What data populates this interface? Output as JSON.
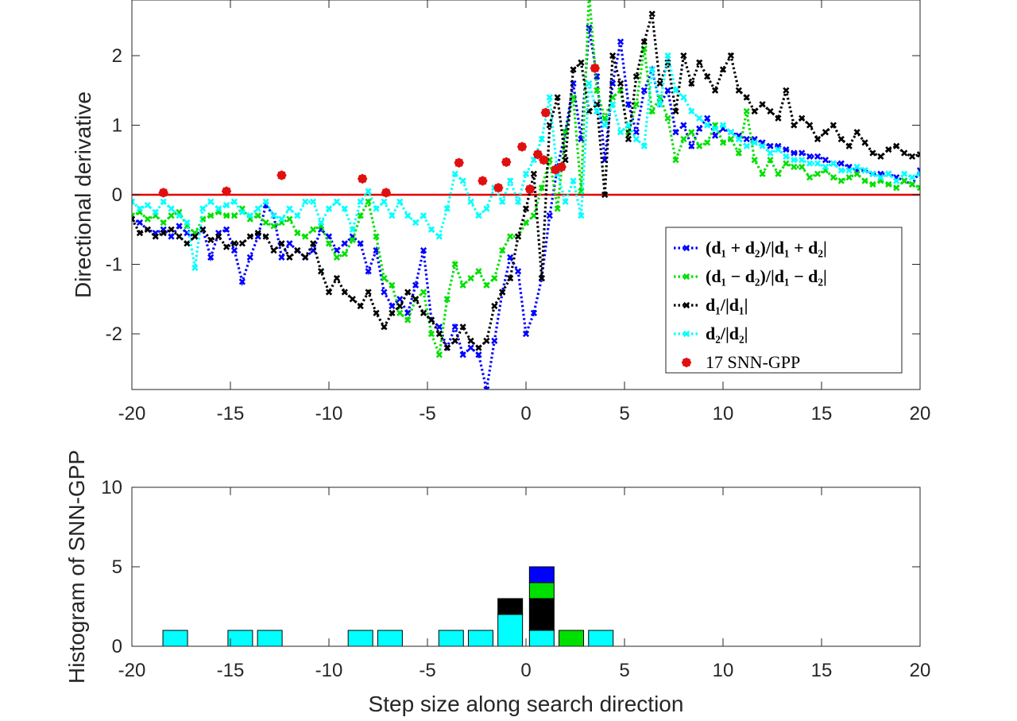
{
  "chart_data": [
    {
      "type": "line",
      "title": "",
      "xlabel": "",
      "ylabel": "Directional derivative",
      "xlim": [
        -20,
        20
      ],
      "ylim": [
        -2.8,
        2.8
      ],
      "xticks": [
        -20,
        -15,
        -10,
        -5,
        0,
        5,
        10,
        15,
        20
      ],
      "yticks": [
        -2,
        -1,
        0,
        1,
        2
      ],
      "xtick_labels": [
        "-20",
        "-15",
        "-10",
        "-5",
        "0",
        "5",
        "10",
        "15",
        "20"
      ],
      "ytick_labels": [
        "-2",
        "-1",
        "0",
        "1",
        "2"
      ],
      "legend_position": "bottom-right",
      "series": [
        {
          "name": "(d1 + d2)/|d1 + d2|",
          "label": "(d₁ + d₂)/|d₁ + d₂|",
          "color": "#0000FF",
          "style": "dotted-x",
          "x": [
            -20,
            -19.6,
            -19.2,
            -18.8,
            -18.4,
            -18,
            -17.6,
            -17.2,
            -16.8,
            -16.4,
            -16,
            -15.6,
            -15.2,
            -14.8,
            -14.4,
            -14,
            -13.6,
            -13.2,
            -12.8,
            -12.4,
            -12,
            -11.6,
            -11.2,
            -10.8,
            -10.4,
            -10,
            -9.6,
            -9.2,
            -8.8,
            -8.4,
            -8,
            -7.6,
            -7.2,
            -6.8,
            -6.4,
            -6,
            -5.6,
            -5.2,
            -4.8,
            -4.4,
            -4,
            -3.6,
            -3.2,
            -2.8,
            -2.4,
            -2,
            -1.6,
            -1.2,
            -0.8,
            -0.4,
            0,
            0.4,
            0.8,
            1.2,
            1.6,
            2,
            2.4,
            2.8,
            3.2,
            3.6,
            4,
            4.4,
            4.8,
            5.2,
            5.6,
            6,
            6.4,
            6.8,
            7.2,
            7.6,
            8,
            8.4,
            8.8,
            9.2,
            9.6,
            10,
            10.4,
            10.8,
            11.2,
            11.6,
            12,
            12.4,
            12.8,
            13.2,
            13.6,
            14,
            14.4,
            14.8,
            15.2,
            15.6,
            16,
            16.4,
            16.8,
            17.2,
            17.6,
            18,
            18.4,
            18.8,
            19.2,
            19.6,
            20
          ],
          "values": [
            -0.35,
            -0.4,
            -0.5,
            -0.55,
            -0.5,
            -0.6,
            -0.45,
            -0.55,
            -0.6,
            -0.5,
            -0.9,
            -0.55,
            -0.5,
            -0.8,
            -1.25,
            -0.9,
            -0.6,
            -0.15,
            -0.3,
            -0.9,
            -0.7,
            -0.8,
            -0.9,
            -0.8,
            -0.5,
            -0.6,
            -0.8,
            -0.7,
            -0.6,
            -0.7,
            -1.1,
            -0.8,
            -1.4,
            -1.6,
            -1.5,
            -1.7,
            -1.3,
            -0.8,
            -1.8,
            -1.9,
            -2.2,
            -1.9,
            -2.3,
            -2.2,
            -2.3,
            -2.8,
            -2.1,
            -1.4,
            -0.9,
            -1.1,
            -2.0,
            -1.7,
            -1.2,
            -0.3,
            0.4,
            0.9,
            1.6,
            0.8,
            2.4,
            1.7,
            0.5,
            1.6,
            2.2,
            1.3,
            0.9,
            1.5,
            1.8,
            1.3,
            1.5,
            0.9,
            1.0,
            0.7,
            0.95,
            1.1,
            0.85,
            0.95,
            0.9,
            0.85,
            0.8,
            0.8,
            0.75,
            0.7,
            0.7,
            0.65,
            0.6,
            0.6,
            0.55,
            0.55,
            0.5,
            0.45,
            0.45,
            0.4,
            0.35,
            0.35,
            0.3,
            0.3,
            0.3,
            0.25,
            0.2,
            0.15,
            0.35
          ]
        },
        {
          "name": "(d1 - d2)/|d1 - d2|",
          "label": "(d₁ − d₂)/|d₁ − d₂|",
          "color": "#00E000",
          "style": "dotted-x",
          "x": [
            -20,
            -19.6,
            -19.2,
            -18.8,
            -18.4,
            -18,
            -17.6,
            -17.2,
            -16.8,
            -16.4,
            -16,
            -15.6,
            -15.2,
            -14.8,
            -14.4,
            -14,
            -13.6,
            -13.2,
            -12.8,
            -12.4,
            -12,
            -11.6,
            -11.2,
            -10.8,
            -10.4,
            -10,
            -9.6,
            -9.2,
            -8.8,
            -8.4,
            -8,
            -7.6,
            -7.2,
            -6.8,
            -6.4,
            -6,
            -5.6,
            -5.2,
            -4.8,
            -4.4,
            -4,
            -3.6,
            -3.2,
            -2.8,
            -2.4,
            -2,
            -1.6,
            -1.2,
            -0.8,
            -0.4,
            0,
            0.4,
            0.8,
            1.2,
            1.6,
            2,
            2.4,
            2.8,
            3.2,
            3.6,
            4,
            4.4,
            4.8,
            5.2,
            5.6,
            6,
            6.4,
            6.8,
            7.2,
            7.6,
            8,
            8.4,
            8.8,
            9.2,
            9.6,
            10,
            10.4,
            10.8,
            11.2,
            11.6,
            12,
            12.4,
            12.8,
            13.2,
            13.6,
            14,
            14.4,
            14.8,
            15.2,
            15.6,
            16,
            16.4,
            16.8,
            17.2,
            17.6,
            18,
            18.4,
            18.8,
            19.2,
            19.6,
            20
          ],
          "values": [
            -0.3,
            -0.25,
            -0.35,
            -0.3,
            -0.4,
            -0.3,
            -0.25,
            -0.45,
            -0.55,
            -0.35,
            -0.3,
            -0.25,
            -0.3,
            -0.3,
            -0.2,
            -0.35,
            -0.3,
            -0.4,
            -0.45,
            -0.4,
            -0.35,
            -0.55,
            -0.6,
            -0.5,
            -0.45,
            -0.7,
            -0.9,
            -0.85,
            -0.65,
            -0.3,
            -0.1,
            -0.6,
            -1.2,
            -1.3,
            -1.7,
            -1.8,
            -1.5,
            -1.4,
            -2.0,
            -2.3,
            -1.5,
            -1.0,
            -1.3,
            -1.2,
            -1.1,
            -1.3,
            -1.2,
            -0.8,
            -0.6,
            -0.6,
            -0.4,
            -0.3,
            0.1,
            0.5,
            -0.2,
            0.9,
            1.4,
            0.05,
            2.9,
            1.5,
            1.1,
            1.4,
            1.5,
            0.9,
            1.3,
            2.1,
            1.2,
            1.4,
            1.1,
            0.5,
            0.8,
            0.9,
            0.7,
            0.75,
            1.0,
            0.75,
            0.8,
            0.6,
            1.2,
            0.5,
            0.3,
            0.5,
            0.3,
            0.45,
            0.4,
            0.4,
            0.25,
            0.3,
            0.35,
            0.25,
            0.2,
            0.25,
            0.3,
            0.2,
            0.15,
            0.2,
            0.15,
            0.1,
            0.2,
            0.15,
            0.1
          ]
        },
        {
          "name": "d1/|d1|",
          "label": "d₁/|d₁|",
          "color": "#000000",
          "style": "dotted-x",
          "x": [
            -20,
            -19.6,
            -19.2,
            -18.8,
            -18.4,
            -18,
            -17.6,
            -17.2,
            -16.8,
            -16.4,
            -16,
            -15.6,
            -15.2,
            -14.8,
            -14.4,
            -14,
            -13.6,
            -13.2,
            -12.8,
            -12.4,
            -12,
            -11.6,
            -11.2,
            -10.8,
            -10.4,
            -10,
            -9.6,
            -9.2,
            -8.8,
            -8.4,
            -8,
            -7.6,
            -7.2,
            -6.8,
            -6.4,
            -6,
            -5.6,
            -5.2,
            -4.8,
            -4.4,
            -4,
            -3.6,
            -3.2,
            -2.8,
            -2.4,
            -2,
            -1.6,
            -1.2,
            -0.8,
            -0.4,
            0,
            0.4,
            0.8,
            1.2,
            1.6,
            2,
            2.4,
            2.8,
            3.2,
            3.6,
            4,
            4.4,
            4.8,
            5.2,
            5.6,
            6,
            6.4,
            6.8,
            7.2,
            7.6,
            8,
            8.4,
            8.8,
            9.2,
            9.6,
            10,
            10.4,
            10.8,
            11.2,
            11.6,
            12,
            12.4,
            12.8,
            13.2,
            13.6,
            14,
            14.4,
            14.8,
            15.2,
            15.6,
            16,
            16.4,
            16.8,
            17.2,
            17.6,
            18,
            18.4,
            18.8,
            19.2,
            19.6,
            20
          ],
          "values": [
            -0.35,
            -0.55,
            -0.5,
            -0.6,
            -0.55,
            -0.5,
            -0.6,
            -0.7,
            -0.6,
            -0.5,
            -0.65,
            -0.6,
            -0.75,
            -0.7,
            -0.7,
            -0.6,
            -0.55,
            -0.6,
            -0.8,
            -0.7,
            -0.9,
            -0.8,
            -0.9,
            -0.7,
            -1.1,
            -1.4,
            -1.2,
            -1.4,
            -1.5,
            -1.6,
            -1.4,
            -1.7,
            -1.9,
            -1.7,
            -1.6,
            -1.4,
            -1.5,
            -1.7,
            -1.8,
            -2.0,
            -2.2,
            -2.1,
            -1.9,
            -2.1,
            -2.2,
            -2.1,
            -1.6,
            -1.4,
            -1.2,
            -0.6,
            -0.2,
            0.3,
            -1.2,
            1.0,
            1.4,
            0.5,
            1.8,
            1.9,
            1.2,
            1.3,
            0.0,
            2.0,
            1.6,
            0.8,
            1.7,
            2.2,
            2.6,
            1.6,
            1.9,
            1.2,
            2.0,
            1.6,
            1.9,
            1.7,
            1.5,
            1.8,
            2.0,
            1.5,
            1.4,
            1.2,
            1.3,
            1.2,
            1.1,
            1.5,
            1.0,
            1.1,
            1.0,
            0.8,
            0.9,
            1.0,
            0.8,
            0.7,
            0.9,
            0.75,
            0.6,
            0.55,
            0.65,
            0.7,
            0.6,
            0.55,
            0.58
          ]
        },
        {
          "name": "d2/|d2|",
          "label": "d₂/|d₂|",
          "color": "#00FFFF",
          "style": "dotted-x",
          "x": [
            -20,
            -19.6,
            -19.2,
            -18.8,
            -18.4,
            -18,
            -17.6,
            -17.2,
            -16.8,
            -16.4,
            -16,
            -15.6,
            -15.2,
            -14.8,
            -14.4,
            -14,
            -13.6,
            -13.2,
            -12.8,
            -12.4,
            -12,
            -11.6,
            -11.2,
            -10.8,
            -10.4,
            -10,
            -9.6,
            -9.2,
            -8.8,
            -8.4,
            -8,
            -7.6,
            -7.2,
            -6.8,
            -6.4,
            -6,
            -5.6,
            -5.2,
            -4.8,
            -4.4,
            -4,
            -3.6,
            -3.2,
            -2.8,
            -2.4,
            -2,
            -1.6,
            -1.2,
            -0.8,
            -0.4,
            0,
            0.4,
            0.8,
            1.2,
            1.6,
            2,
            2.4,
            2.8,
            3.2,
            3.6,
            4,
            4.4,
            4.8,
            5.2,
            5.6,
            6,
            6.4,
            6.8,
            7.2,
            7.6,
            8,
            8.4,
            8.8,
            9.2,
            9.6,
            10,
            10.4,
            10.8,
            11.2,
            11.6,
            12,
            12.4,
            12.8,
            13.2,
            13.6,
            14,
            14.4,
            14.8,
            15.2,
            15.6,
            16,
            16.4,
            16.8,
            17.2,
            17.6,
            18,
            18.4,
            18.8,
            19.2,
            19.6,
            20
          ],
          "values": [
            -0.1,
            -0.2,
            -0.15,
            -0.25,
            -0.1,
            -0.2,
            -0.3,
            -0.4,
            -1.05,
            -0.2,
            -0.1,
            -0.2,
            -0.15,
            -0.1,
            -0.25,
            -0.3,
            -0.2,
            -0.1,
            -0.3,
            -0.35,
            -0.2,
            -0.3,
            -0.1,
            -0.1,
            -0.4,
            -0.2,
            -0.1,
            -0.2,
            -0.5,
            -0.1,
            0.05,
            -0.2,
            -0.1,
            -0.3,
            -0.1,
            -0.3,
            -0.4,
            -0.3,
            -0.5,
            -0.6,
            -0.2,
            0.3,
            0.2,
            -0.1,
            -0.3,
            -0.2,
            0.1,
            -0.1,
            0.2,
            -0.1,
            0.3,
            0.5,
            0.8,
            1.4,
            0.3,
            -0.1,
            0.2,
            -0.3,
            1.6,
            1.2,
            1.0,
            1.3,
            0.9,
            1.0,
            0.8,
            0.7,
            1.8,
            1.3,
            2.0,
            1.5,
            1.4,
            1.2,
            1.1,
            1.0,
            0.95,
            1.0,
            0.9,
            0.8,
            0.7,
            0.75,
            0.7,
            0.6,
            0.65,
            0.55,
            0.5,
            0.5,
            0.45,
            0.45,
            0.4,
            0.45,
            0.35,
            0.35,
            0.4,
            0.35,
            0.3,
            0.25,
            0.3,
            0.2,
            0.3,
            0.25,
            0.3
          ]
        },
        {
          "name": "17 SNN-GPP",
          "label": "17 SNN-GPP",
          "color": "#E01010",
          "style": "marker",
          "x": [
            -18.4,
            -15.2,
            -12.4,
            -8.3,
            -7.1,
            -3.4,
            -2.2,
            -1.4,
            -1.0,
            -0.2,
            0.2,
            0.6,
            0.9,
            1.0,
            1.5,
            1.8,
            3.5
          ],
          "values": [
            0.03,
            0.05,
            0.28,
            0.23,
            0.03,
            0.46,
            0.2,
            0.1,
            0.47,
            0.69,
            0.08,
            0.58,
            0.5,
            1.18,
            0.36,
            0.4,
            1.82
          ]
        }
      ],
      "reference_line": {
        "y": 0,
        "color": "#E00000"
      }
    },
    {
      "type": "bar",
      "subtype": "stacked-histogram",
      "title": "",
      "xlabel": "Step size along search direction",
      "ylabel": "Histogram of SNN-GPP",
      "xlim": [
        -20,
        20
      ],
      "ylim": [
        0,
        10
      ],
      "xticks": [
        -20,
        -15,
        -10,
        -5,
        0,
        5,
        10,
        15,
        20
      ],
      "yticks": [
        0,
        5,
        10
      ],
      "xtick_labels": [
        "-20",
        "-15",
        "-10",
        "-5",
        "0",
        "5",
        "10",
        "15",
        "20"
      ],
      "ytick_labels": [
        "0",
        "5",
        "10"
      ],
      "bin_width": 1.25,
      "bin_centers": [
        -17.8,
        -14.5,
        -13.0,
        -8.4,
        -6.9,
        -3.8,
        -2.3,
        -0.8,
        0.8,
        2.3,
        3.8
      ],
      "series": [
        {
          "name": "d2/|d2|",
          "color": "#00FFFF",
          "values": [
            1,
            1,
            1,
            1,
            1,
            1,
            1,
            2,
            1,
            0,
            1
          ]
        },
        {
          "name": "d1/|d1|",
          "color": "#000000",
          "values": [
            0,
            0,
            0,
            0,
            0,
            0,
            0,
            1,
            2,
            0,
            0
          ]
        },
        {
          "name": "(d1 - d2)/|d1 - d2|",
          "color": "#00E000",
          "values": [
            0,
            0,
            0,
            0,
            0,
            0,
            0,
            0,
            1,
            1,
            0
          ]
        },
        {
          "name": "(d1 + d2)/|d1 + d2|",
          "color": "#0000FF",
          "values": [
            0,
            0,
            0,
            0,
            0,
            0,
            0,
            0,
            1,
            0,
            0
          ]
        }
      ]
    }
  ]
}
